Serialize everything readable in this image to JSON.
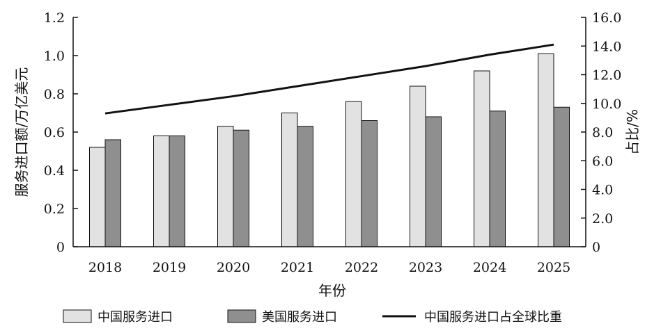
{
  "chart_data": {
    "type": "bar+line",
    "categories": [
      "2018",
      "2019",
      "2020",
      "2021",
      "2022",
      "2023",
      "2024",
      "2025"
    ],
    "series": [
      {
        "name": "中国服务进口",
        "kind": "bar",
        "axis": "left",
        "color": "#e2e2e2",
        "values": [
          0.52,
          0.58,
          0.63,
          0.7,
          0.76,
          0.84,
          0.92,
          1.01
        ]
      },
      {
        "name": "美国服务进口",
        "kind": "bar",
        "axis": "left",
        "color": "#8f8f8f",
        "values": [
          0.56,
          0.58,
          0.61,
          0.63,
          0.66,
          0.68,
          0.71,
          0.73
        ]
      },
      {
        "name": "中国服务进口占全球比重",
        "kind": "line",
        "axis": "right",
        "color": "#111111",
        "values": [
          9.3,
          9.9,
          10.5,
          11.2,
          11.9,
          12.6,
          13.4,
          14.1
        ]
      }
    ],
    "xlabel": "年份",
    "ylabel": "服务进口额/万亿美元",
    "y2label": "占比/%",
    "ylim": [
      0,
      1.2
    ],
    "y2lim": [
      0,
      16
    ],
    "yticks": [
      "0",
      "0.2",
      "0.4",
      "0.6",
      "0.8",
      "1.0",
      "1.2"
    ],
    "y2ticks": [
      "0",
      "2.0",
      "4.0",
      "6.0",
      "8.0",
      "10.0",
      "12.0",
      "14.0",
      "16.0"
    ],
    "legend_position": "bottom",
    "grid": false
  }
}
